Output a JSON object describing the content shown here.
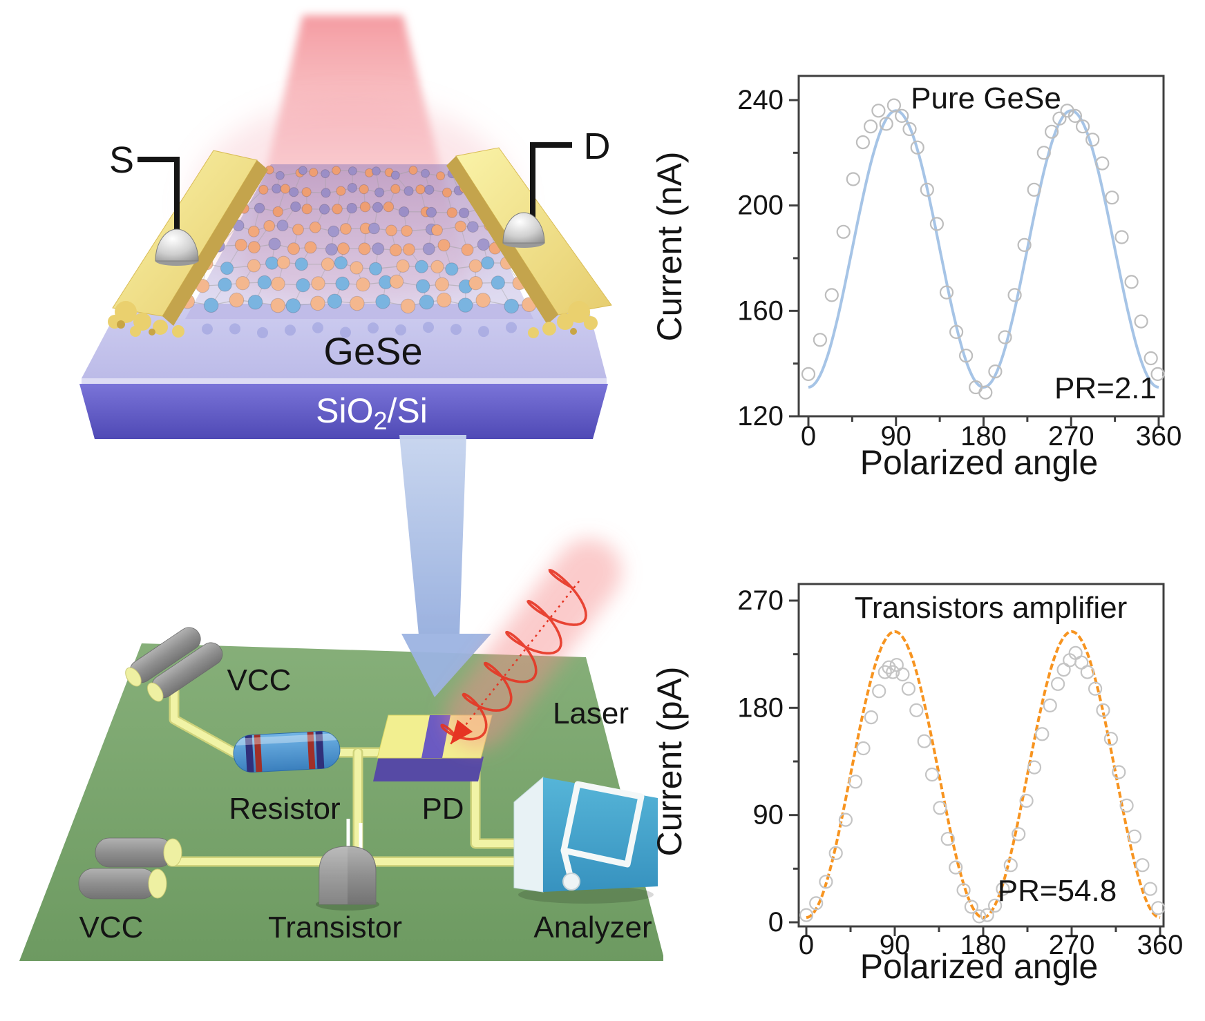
{
  "device_panel": {
    "source_label": "S",
    "drain_label": "D",
    "material_label": "GeSe",
    "substrate_label": {
      "pre": "SiO",
      "sub": "2",
      "post": "/Si"
    }
  },
  "circuit_panel": {
    "vcc_top_label": "VCC",
    "resistor_label": "Resistor",
    "pd_label": "PD",
    "laser_label": "Laser",
    "transistor_label": "Transistor",
    "analyzer_label": "Analyzer",
    "vcc_bottom_label": "VCC"
  },
  "chart_data": [
    {
      "type": "scatter",
      "title": "Pure GeSe",
      "annotation": "PR=2.1",
      "xlabel": "Polarized angle",
      "ylabel": "Current (nA)",
      "xlim": [
        0,
        360
      ],
      "ylim": [
        120,
        240
      ],
      "xticks": [
        0,
        90,
        180,
        270,
        360
      ],
      "yticks": [
        120,
        160,
        200,
        240
      ],
      "grid": false,
      "legend": "none",
      "line_color": "#a6c4e6",
      "marker_color": "#bdbdbd",
      "fit_model": "I = A - B*cos(2*theta_deg)",
      "fit_A": 183.5,
      "fit_B": 52.5,
      "scatter": [
        [
          0,
          136
        ],
        [
          12,
          149
        ],
        [
          24,
          166
        ],
        [
          36,
          190
        ],
        [
          46,
          210
        ],
        [
          56,
          224
        ],
        [
          64,
          230
        ],
        [
          72,
          236
        ],
        [
          80,
          231
        ],
        [
          88,
          238
        ],
        [
          96,
          234
        ],
        [
          104,
          229
        ],
        [
          112,
          222
        ],
        [
          122,
          206
        ],
        [
          132,
          193
        ],
        [
          142,
          167
        ],
        [
          152,
          152
        ],
        [
          162,
          143
        ],
        [
          172,
          131
        ],
        [
          182,
          129
        ],
        [
          192,
          137
        ],
        [
          202,
          150
        ],
        [
          212,
          166
        ],
        [
          222,
          185
        ],
        [
          232,
          206
        ],
        [
          242,
          220
        ],
        [
          250,
          228
        ],
        [
          258,
          233
        ],
        [
          266,
          236
        ],
        [
          274,
          234
        ],
        [
          282,
          230
        ],
        [
          292,
          225
        ],
        [
          302,
          216
        ],
        [
          312,
          203
        ],
        [
          322,
          188
        ],
        [
          332,
          171
        ],
        [
          342,
          156
        ],
        [
          352,
          142
        ],
        [
          359,
          136
        ]
      ]
    },
    {
      "type": "scatter",
      "title": "Transistors amplifier",
      "annotation": "PR=54.8",
      "xlabel": "Polarized angle",
      "ylabel": "Current (pA)",
      "xlim": [
        0,
        360
      ],
      "ylim": [
        0,
        270
      ],
      "xticks": [
        0,
        90,
        180,
        270,
        360
      ],
      "yticks": [
        0,
        90,
        180,
        270
      ],
      "grid": false,
      "legend": "none",
      "line_color": "#f79420",
      "marker_color": "#c4c4c4",
      "fit_model": "I = A - B*cos(2*theta_deg)",
      "fit_A": 124,
      "fit_B": 120,
      "scatter": [
        [
          0,
          6
        ],
        [
          10,
          16
        ],
        [
          20,
          34
        ],
        [
          30,
          58
        ],
        [
          40,
          86
        ],
        [
          50,
          118
        ],
        [
          58,
          146
        ],
        [
          66,
          172
        ],
        [
          74,
          194
        ],
        [
          80,
          210
        ],
        [
          84,
          214
        ],
        [
          88,
          210
        ],
        [
          92,
          216
        ],
        [
          98,
          208
        ],
        [
          104,
          196
        ],
        [
          112,
          178
        ],
        [
          120,
          152
        ],
        [
          128,
          124
        ],
        [
          136,
          96
        ],
        [
          144,
          70
        ],
        [
          152,
          46
        ],
        [
          160,
          27
        ],
        [
          168,
          13
        ],
        [
          176,
          5
        ],
        [
          184,
          6
        ],
        [
          192,
          14
        ],
        [
          200,
          28
        ],
        [
          208,
          48
        ],
        [
          216,
          74
        ],
        [
          224,
          102
        ],
        [
          232,
          130
        ],
        [
          240,
          158
        ],
        [
          248,
          182
        ],
        [
          256,
          200
        ],
        [
          262,
          212
        ],
        [
          268,
          220
        ],
        [
          274,
          226
        ],
        [
          280,
          218
        ],
        [
          286,
          210
        ],
        [
          294,
          196
        ],
        [
          302,
          178
        ],
        [
          310,
          154
        ],
        [
          318,
          126
        ],
        [
          326,
          98
        ],
        [
          334,
          72
        ],
        [
          342,
          48
        ],
        [
          350,
          28
        ],
        [
          358,
          12
        ]
      ]
    }
  ],
  "colors": {
    "chart1_line": "#a6c4e6",
    "chart2_line": "#f79420",
    "axis": "#3f3f3f",
    "board_green": "#7ca46f",
    "wire_yellow": "#f1f3a6",
    "gold_electrode": "#f2e391",
    "substrate_top": "#c7c7ec",
    "substrate_front": "#5a54c6",
    "beam_pink": "#f5a9ad",
    "arrow_blue": "#aec5e8",
    "laser_red": "#e63422",
    "analyzer_blue": "#3d9fc9",
    "pd_purple": "#6a5ac2",
    "pd_yellow": "#f2ef90",
    "resistor_blue": "#4a9ad4",
    "metal_gray": "#8f8f8f"
  }
}
